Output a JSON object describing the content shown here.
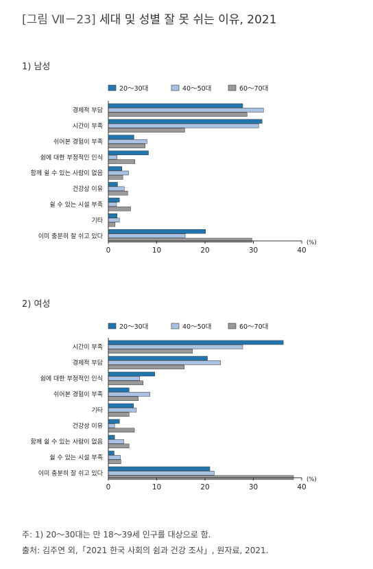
{
  "figure": {
    "prefix": "[그림 Ⅶ－23]",
    "title": "세대 및 성별 잘 못 쉬는 이유, 2021"
  },
  "colors": {
    "s1": "#2176ae",
    "s2": "#a9c2e4",
    "s3": "#9a9a9a",
    "edge": "#333333"
  },
  "chart_data": [
    {
      "type": "bar",
      "orientation": "horizontal",
      "panel_title": "1) 남성",
      "categories": [
        "경제적 부담",
        "시간이 부족",
        "쉬어본 경험이 부족",
        "쉼에 대한 부정적인 인식",
        "함께 쉴 수 있는 사람이 없음",
        "건강상 이유",
        "쉴 수 있는 시설 부족",
        "기타",
        "이미 충분히 잘 쉬고 있다"
      ],
      "series": [
        {
          "name": "20～30대",
          "values": [
            27.8,
            31.8,
            5.3,
            8.3,
            2.8,
            1.9,
            2.3,
            1.8,
            20.1
          ]
        },
        {
          "name": "40～50대",
          "values": [
            32.1,
            31.1,
            8.0,
            1.8,
            4.2,
            3.3,
            1.7,
            2.3,
            15.9
          ]
        },
        {
          "name": "60～70대",
          "values": [
            28.7,
            15.8,
            7.6,
            5.5,
            3.0,
            4.0,
            4.6,
            1.4,
            29.7
          ]
        }
      ],
      "xlim": [
        0,
        40
      ],
      "xticks": [
        "0",
        "10",
        "20",
        "30",
        "40"
      ],
      "unit": "(%)",
      "legend": "top"
    },
    {
      "type": "bar",
      "orientation": "horizontal",
      "panel_title": "2) 여성",
      "categories": [
        "시간이 부족",
        "경제적 부담",
        "쉼에 대한 부정적인 인식",
        "쉬어본 경험이 부족",
        "기타",
        "건강상 이유",
        "함께 쉴 수 있는 사람이 없음",
        "쉴 수 있는 시설 부족",
        "이미 충분히 잘 쉬고 있다"
      ],
      "series": [
        {
          "name": "20～30대",
          "values": [
            36.2,
            20.5,
            9.6,
            4.3,
            5.2,
            2.3,
            1.3,
            1.2,
            21.0
          ]
        },
        {
          "name": "40～50대",
          "values": [
            27.8,
            23.2,
            6.5,
            8.6,
            5.8,
            1.3,
            3.2,
            2.5,
            21.9
          ]
        },
        {
          "name": "60～70대",
          "values": [
            17.4,
            15.7,
            7.2,
            6.2,
            4.3,
            5.4,
            4.3,
            2.6,
            38.3
          ]
        }
      ],
      "xlim": [
        0,
        40
      ],
      "xticks": [
        "0",
        "10",
        "20",
        "30",
        "40"
      ],
      "unit": "(%)",
      "legend": "top"
    }
  ],
  "notes": {
    "note1": "주: 1) 20～30대는 만 18～39세 인구를 대상으로 함.",
    "source": "출처: 김주연 외,「2021 한국 사회의 쉼과 건강 조사」, 원자료, 2021."
  }
}
